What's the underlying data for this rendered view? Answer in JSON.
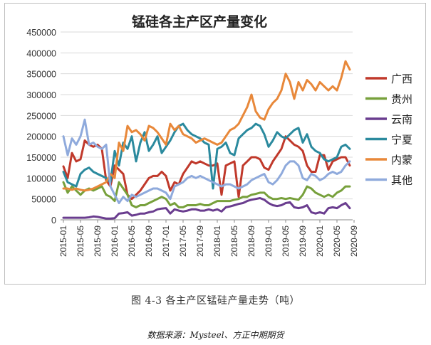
{
  "figure_caption": "图 4-3 各主产区锰硅产量走势（吨）",
  "source_note": "数据来源：Mysteel、方正中期期货",
  "chart_data": {
    "type": "line",
    "title": "锰硅各主产区产量变化",
    "xlabel": "",
    "ylabel": "",
    "ylim": [
      0,
      450000
    ],
    "yticks": [
      "0",
      "50000",
      "100000",
      "150000",
      "200000",
      "250000",
      "300000",
      "350000",
      "400000",
      "450000"
    ],
    "xticks": [
      "2015-01",
      "2015-05",
      "2015-09",
      "2016-01",
      "2016-05",
      "2016-09",
      "2017-01",
      "2017-05",
      "2017-09",
      "2018-01",
      "2018-05",
      "2018-09",
      "2019-01",
      "2019-05",
      "2019-09",
      "2020-01",
      "2020-05",
      "2020-09"
    ],
    "x_start": "2015-01",
    "x_end": "2020-12",
    "grid": "horizontal",
    "legend_position": "right",
    "series": [
      {
        "name": "广西",
        "color": "#c0392b",
        "values": [
          128000,
          100000,
          160000,
          140000,
          145000,
          190000,
          180000,
          175000,
          180000,
          170000,
          95000,
          80000,
          130000,
          120000,
          110000,
          60000,
          50000,
          60000,
          70000,
          85000,
          100000,
          105000,
          105000,
          115000,
          105000,
          70000,
          90000,
          85000,
          110000,
          125000,
          140000,
          135000,
          140000,
          135000,
          130000,
          130000,
          135000,
          60000,
          130000,
          135000,
          140000,
          55000,
          130000,
          140000,
          150000,
          150000,
          145000,
          125000,
          120000,
          140000,
          155000,
          170000,
          200000,
          190000,
          180000,
          175000,
          165000,
          130000,
          115000,
          115000,
          155000,
          155000,
          120000,
          140000,
          145000,
          150000,
          150000,
          130000
        ]
      },
      {
        "name": "贵州",
        "color": "#77a03b",
        "values": [
          90000,
          65000,
          80000,
          70000,
          60000,
          70000,
          75000,
          70000,
          75000,
          80000,
          60000,
          55000,
          45000,
          90000,
          75000,
          60000,
          35000,
          30000,
          35000,
          35000,
          40000,
          45000,
          50000,
          55000,
          50000,
          35000,
          40000,
          30000,
          30000,
          35000,
          35000,
          35000,
          38000,
          35000,
          35000,
          40000,
          45000,
          45000,
          45000,
          45000,
          48000,
          50000,
          55000,
          55000,
          60000,
          62000,
          65000,
          65000,
          55000,
          50000,
          50000,
          52000,
          50000,
          52000,
          50000,
          48000,
          60000,
          80000,
          75000,
          65000,
          60000,
          55000,
          60000,
          55000,
          65000,
          70000,
          80000,
          80000
        ]
      },
      {
        "name": "云南",
        "color": "#6a3d8f",
        "values": [
          5000,
          5000,
          5000,
          5000,
          5000,
          5000,
          6000,
          8000,
          7000,
          5000,
          3000,
          3000,
          4000,
          15000,
          16000,
          18000,
          10000,
          12000,
          15000,
          15000,
          18000,
          20000,
          25000,
          27000,
          28000,
          15000,
          25000,
          22000,
          20000,
          22000,
          25000,
          25000,
          22000,
          22000,
          25000,
          22000,
          25000,
          20000,
          30000,
          32000,
          35000,
          38000,
          40000,
          45000,
          48000,
          50000,
          52000,
          48000,
          40000,
          35000,
          33000,
          35000,
          40000,
          42000,
          30000,
          28000,
          30000,
          35000,
          18000,
          15000,
          18000,
          15000,
          28000,
          30000,
          28000,
          35000,
          40000,
          28000
        ]
      },
      {
        "name": "宁夏",
        "color": "#2b8a9e",
        "values": [
          115000,
          90000,
          85000,
          80000,
          110000,
          120000,
          125000,
          115000,
          110000,
          105000,
          100000,
          90000,
          165000,
          130000,
          185000,
          170000,
          200000,
          140000,
          185000,
          210000,
          165000,
          180000,
          200000,
          160000,
          175000,
          190000,
          210000,
          225000,
          230000,
          215000,
          205000,
          200000,
          195000,
          185000,
          180000,
          75000,
          170000,
          175000,
          185000,
          160000,
          155000,
          195000,
          205000,
          215000,
          220000,
          230000,
          225000,
          205000,
          175000,
          190000,
          210000,
          200000,
          195000,
          205000,
          215000,
          220000,
          185000,
          205000,
          175000,
          165000,
          160000,
          145000,
          140000,
          145000,
          150000,
          175000,
          180000,
          170000
        ]
      },
      {
        "name": "内蒙",
        "color": "#e8883a",
        "values": [
          75000,
          75000,
          72000,
          75000,
          72000,
          70000,
          72000,
          75000,
          80000,
          85000,
          90000,
          110000,
          100000,
          185000,
          165000,
          225000,
          210000,
          215000,
          205000,
          190000,
          225000,
          220000,
          210000,
          195000,
          180000,
          230000,
          215000,
          225000,
          205000,
          200000,
          195000,
          185000,
          190000,
          195000,
          190000,
          185000,
          180000,
          185000,
          200000,
          215000,
          220000,
          230000,
          250000,
          270000,
          300000,
          260000,
          245000,
          240000,
          265000,
          280000,
          290000,
          310000,
          350000,
          330000,
          290000,
          330000,
          310000,
          335000,
          325000,
          310000,
          330000,
          320000,
          310000,
          320000,
          310000,
          340000,
          380000,
          360000
        ]
      },
      {
        "name": "其他",
        "color": "#8faadc",
        "values": [
          200000,
          155000,
          195000,
          180000,
          200000,
          240000,
          180000,
          185000,
          175000,
          170000,
          180000,
          80000,
          60000,
          40000,
          55000,
          45000,
          60000,
          55000,
          60000,
          65000,
          70000,
          75000,
          75000,
          70000,
          65000,
          50000,
          80000,
          85000,
          90000,
          100000,
          105000,
          100000,
          105000,
          100000,
          95000,
          90000,
          85000,
          80000,
          85000,
          85000,
          80000,
          75000,
          80000,
          85000,
          95000,
          100000,
          105000,
          110000,
          90000,
          85000,
          95000,
          110000,
          130000,
          140000,
          140000,
          130000,
          100000,
          95000,
          110000,
          105000,
          95000,
          100000,
          110000,
          115000,
          110000,
          115000,
          130000,
          140000
        ]
      }
    ]
  }
}
